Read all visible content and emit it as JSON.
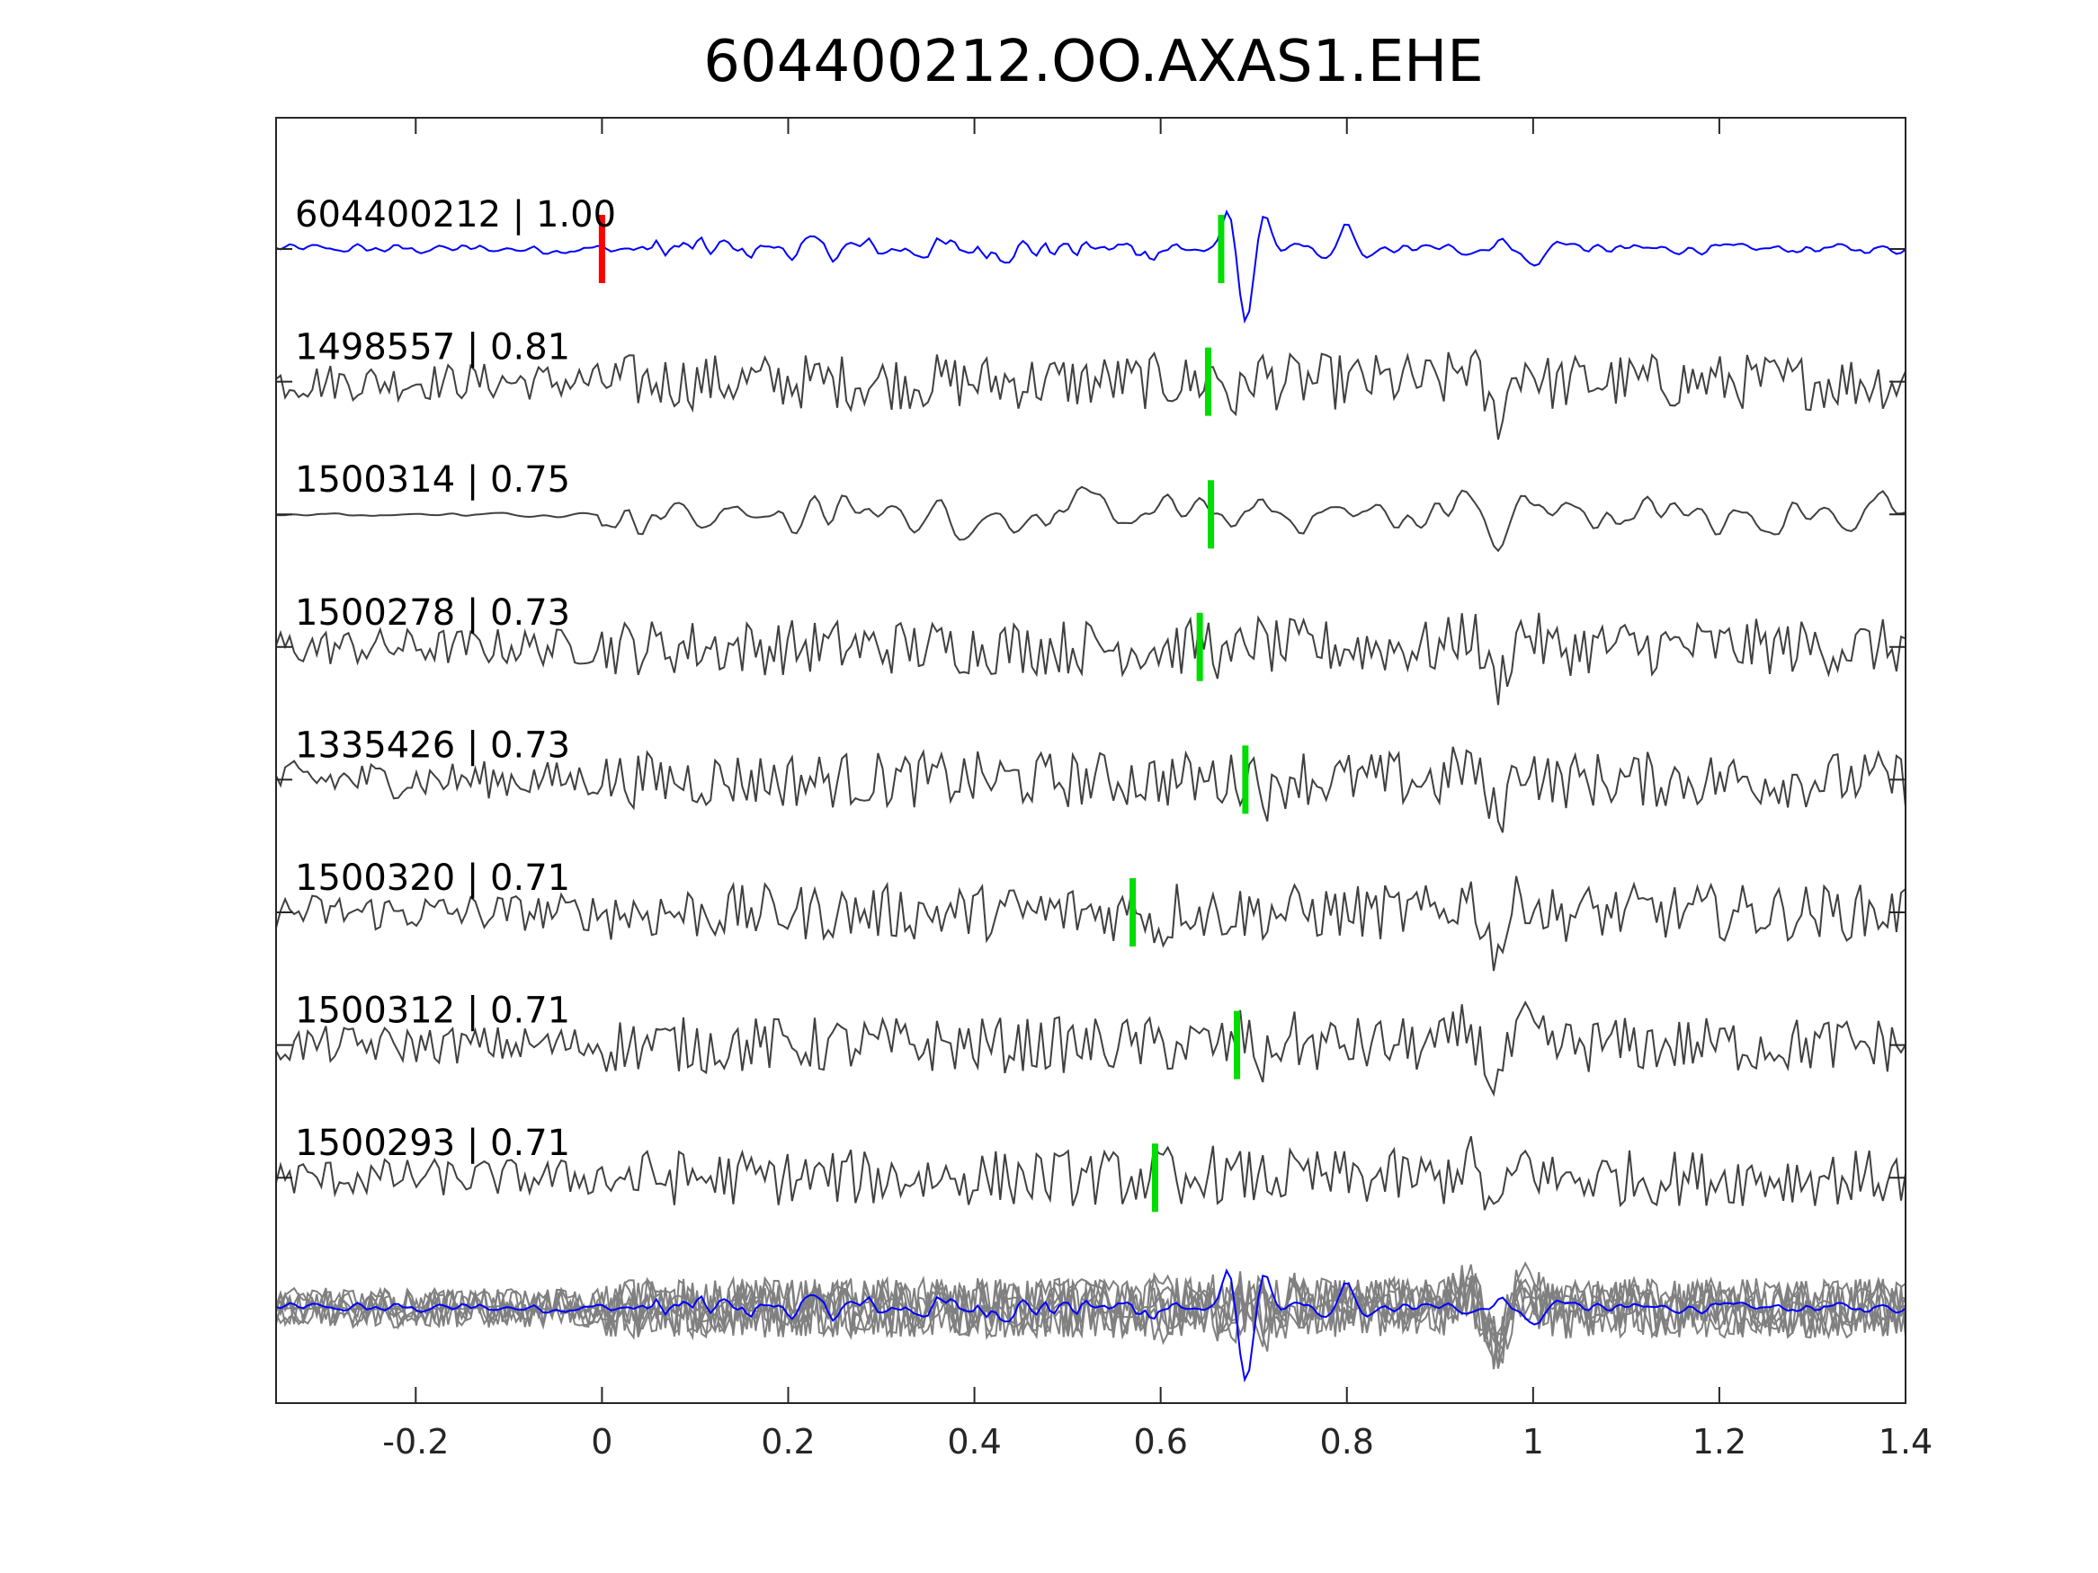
{
  "chart_data": {
    "type": "line",
    "title": "604400212.OO.AXAS1.EHE",
    "xlabel": "",
    "ylabel": "",
    "xlim": [
      -0.35,
      1.4
    ],
    "x_ticks": [
      -0.2,
      0,
      0.2,
      0.4,
      0.6,
      0.8,
      1,
      1.2,
      1.4
    ],
    "x_tick_labels": [
      "-0.2",
      "0",
      "0.2",
      "0.4",
      "0.6",
      "0.8",
      "1",
      "1.2",
      "1.4"
    ],
    "reference_pick": {
      "time": 0.0,
      "color": "#ff0000"
    },
    "template": {
      "label": "604400212 | 1.00",
      "event_id": "604400212",
      "cc": 1.0,
      "pick": 0.665,
      "color": "#0000ff"
    },
    "traces": [
      {
        "label": "1498557 | 0.81",
        "event_id": "1498557",
        "cc": 0.81,
        "pick": 0.651
      },
      {
        "label": "1500314 | 0.75",
        "event_id": "1500314",
        "cc": 0.75,
        "pick": 0.654
      },
      {
        "label": "1500278 | 0.73",
        "event_id": "1500278",
        "cc": 0.73,
        "pick": 0.642
      },
      {
        "label": "1335426 | 0.73",
        "event_id": "1335426",
        "cc": 0.73,
        "pick": 0.691
      },
      {
        "label": "1500320 | 0.71",
        "event_id": "1500320",
        "cc": 0.71,
        "pick": 0.57
      },
      {
        "label": "1500312 | 0.71",
        "event_id": "1500312",
        "cc": 0.71,
        "pick": 0.682
      },
      {
        "label": "1500293 | 0.71",
        "event_id": "1500293",
        "cc": 0.71,
        "pick": 0.594
      }
    ],
    "trace_color": "#404040",
    "stack_trace_color": "#808080",
    "pick_color": "#00dd00",
    "grid": false,
    "legend": "none"
  }
}
